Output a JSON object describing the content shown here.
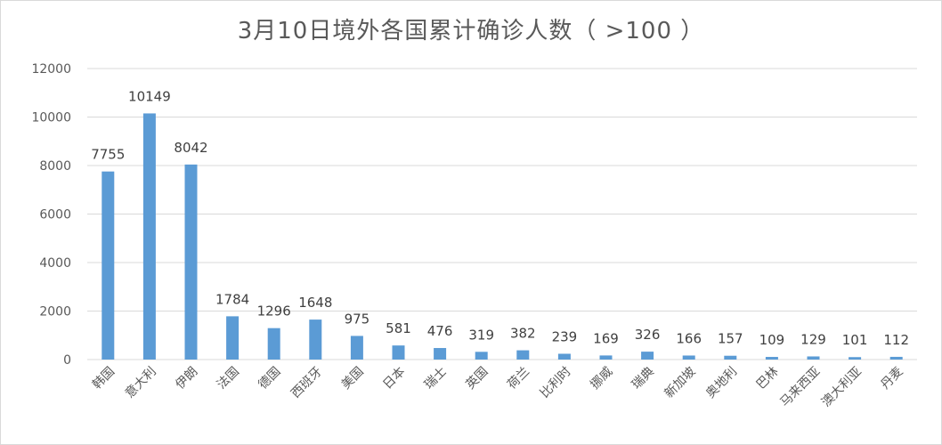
{
  "chart_data": {
    "type": "bar",
    "title": "3月10日境外各国累计确诊人数（ >100 ）",
    "categories": [
      "韩国",
      "意大利",
      "伊朗",
      "法国",
      "德国",
      "西班牙",
      "美国",
      "日本",
      "瑞士",
      "英国",
      "荷兰",
      "比利时",
      "挪威",
      "瑞典",
      "新加坡",
      "奥地利",
      "巴林",
      "马来西亚",
      "澳大利亚",
      "丹麦"
    ],
    "values": [
      7755,
      10149,
      8042,
      1784,
      1296,
      1648,
      975,
      581,
      476,
      319,
      382,
      239,
      169,
      326,
      166,
      157,
      109,
      129,
      101,
      112
    ],
    "ylim": [
      0,
      12000
    ],
    "yticks": [
      "0",
      "2000",
      "4000",
      "6000",
      "8000",
      "10000",
      "12000"
    ],
    "grid": true,
    "bar_color": "#5b9bd5",
    "grid_color": "#d9d9d9"
  }
}
